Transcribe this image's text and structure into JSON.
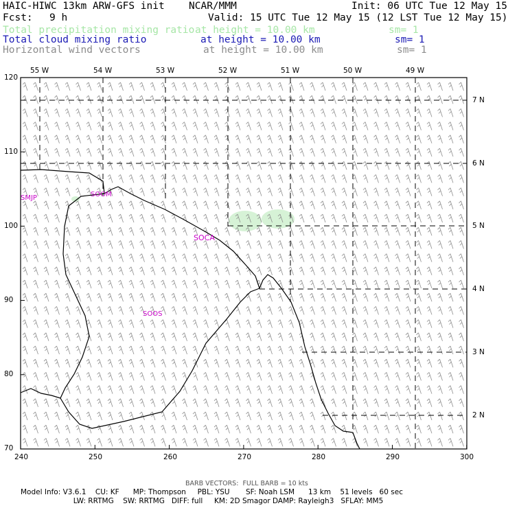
{
  "header": {
    "model_title": "HAIC-HIWC 13km ARW-GFS init",
    "org": "NCAR/MMM",
    "init": "Init: 06 UTC Tue 12 May 15",
    "fcst_label": "Fcst:",
    "fcst_value": "9 h",
    "valid": "Valid: 15 UTC Tue 12 May 15 (12 LST Tue 12 May 15)"
  },
  "fields": [
    {
      "name": "Total precipitation mixing ratio",
      "height": "at height = 10.00 km",
      "sm": "sm= 1",
      "color": "#a6e6a6"
    },
    {
      "name": "Total cloud mixing ratio",
      "height": "at height = 10.00 km",
      "sm": "sm= 1",
      "color": "#1a1ab4"
    },
    {
      "name": "Horizontal wind vectors",
      "height": "at height = 10.00 km",
      "sm": "sm= 1",
      "color": "#8c8c8c"
    }
  ],
  "axes": {
    "x_ticks": [
      "240",
      "250",
      "260",
      "270",
      "280",
      "290",
      "300"
    ],
    "y_ticks": [
      "70",
      "80",
      "90",
      "100",
      "110",
      "120"
    ],
    "lon_labels": [
      "55 W",
      "54 W",
      "53 W",
      "52 W",
      "51 W",
      "50 W",
      "49 W"
    ],
    "lat_labels": [
      "2 N",
      "3 N",
      "4 N",
      "5 N",
      "6 N",
      "7 N"
    ]
  },
  "stations": [
    {
      "id": "SMJP"
    },
    {
      "id": "SOCA"
    },
    {
      "id": "SOOM"
    },
    {
      "id": "SOOS"
    }
  ],
  "station_color": "#c800c8",
  "footer": {
    "barb_note": "BARB VECTORS:  FULL BARB = 10 kts",
    "line1": "Model Info: V3.6.1    CU: KF      MP: Thompson     PBL: YSU       SF: Noah LSM      13 km    51 levels   60 sec",
    "line2": "                       LW: RRTMG    SW: RRTMG   DIFF: full     KM: 2D Smagor DAMP: Rayleigh3   SFLAY: MM5"
  }
}
